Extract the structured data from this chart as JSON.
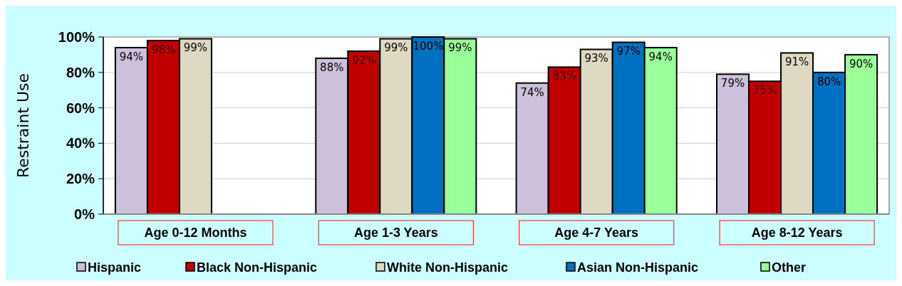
{
  "chart_data": {
    "type": "bar",
    "ylabel": "Restraint Use",
    "categories": [
      "Age 0-12 Months",
      "Age 1-3 Years",
      "Age 4-7 Years",
      "Age 8-12 Years"
    ],
    "series": [
      {
        "name": "Hispanic",
        "color": "#ccc0da",
        "values": [
          94,
          88,
          74,
          79
        ],
        "value_labels": [
          "94%",
          "88%",
          "74%",
          "79%"
        ]
      },
      {
        "name": "Black Non-Hispanic",
        "color": "#c00000",
        "values": [
          98,
          92,
          83,
          75
        ],
        "value_labels": [
          "98%",
          "92%",
          "83%",
          "75%"
        ]
      },
      {
        "name": "White Non-Hispanic",
        "color": "#ddd9c3",
        "values": [
          99,
          99,
          93,
          91
        ],
        "value_labels": [
          "99%",
          "99%",
          "93%",
          "91%"
        ]
      },
      {
        "name": "Asian Non-Hispanic",
        "color": "#0070c0",
        "values": [
          null,
          100,
          97,
          80
        ],
        "value_labels": [
          null,
          "100%",
          "97%",
          "80%"
        ]
      },
      {
        "name": "Other",
        "color": "#99ff99",
        "values": [
          null,
          99,
          94,
          90
        ],
        "value_labels": [
          null,
          "99%",
          "94%",
          "90%"
        ]
      }
    ],
    "ylim": [
      0,
      100
    ],
    "yticks": [
      {
        "value": 0,
        "label": "0%"
      },
      {
        "value": 20,
        "label": "20%"
      },
      {
        "value": 40,
        "label": "40%"
      },
      {
        "value": 60,
        "label": "60%"
      },
      {
        "value": 80,
        "label": "80%"
      },
      {
        "value": 100,
        "label": "100%"
      }
    ],
    "grid": "y",
    "legend": "bottom"
  }
}
